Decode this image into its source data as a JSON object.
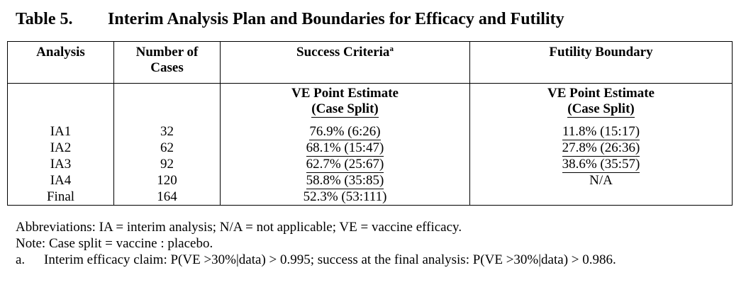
{
  "title": {
    "number": "Table 5.",
    "text": "Interim Analysis Plan and Boundaries for Efficacy and Futility"
  },
  "table": {
    "headers": {
      "analysis": "Analysis",
      "cases_line1": "Number of",
      "cases_line2": "Cases",
      "success": "Success Criteria",
      "success_sup": "a",
      "futility": "Futility Boundary"
    },
    "subheaders": {
      "success_line1": "VE Point Estimate",
      "success_line2": "(Case Split)",
      "futility_line1": "VE Point Estimate",
      "futility_line2": "(Case Split)"
    },
    "rows": [
      {
        "analysis": "IA1",
        "cases": "32",
        "success": "76.9% (6:26)",
        "futility": "11.8% (15:17)"
      },
      {
        "analysis": "IA2",
        "cases": "62",
        "success": "68.1% (15:47)",
        "futility": "27.8% (26:36)"
      },
      {
        "analysis": "IA3",
        "cases": "92",
        "success": "62.7% (25:67)",
        "futility": "38.6% (35:57)"
      },
      {
        "analysis": "IA4",
        "cases": "120",
        "success": "58.8% (35:85)",
        "futility": "N/A"
      },
      {
        "analysis": "Final",
        "cases": "164",
        "success": "52.3% (53:111)",
        "futility": ""
      }
    ]
  },
  "notes": {
    "abbreviations": "Abbreviations: IA = interim analysis; N/A = not applicable; VE = vaccine efficacy.",
    "note": "Note: Case split = vaccine : placebo.",
    "footnote_label": "a.",
    "footnote_text": "Interim efficacy claim: P(VE >30%|data) > 0.995; success at the final analysis: P(VE >30%|data) > 0.986."
  }
}
